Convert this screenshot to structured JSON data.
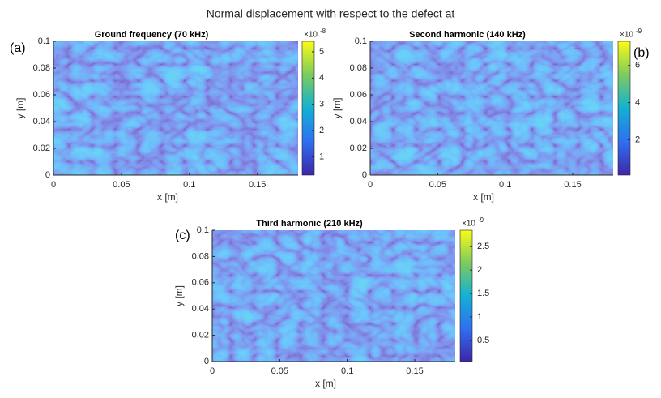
{
  "figure_title": "Normal displacement with respect to the defect at",
  "chart_data": [
    {
      "type": "heatmap",
      "panel_label": "(a)",
      "title": "Ground frequency (70 kHz)",
      "x_label": "x [m]",
      "y_label": "y [m]",
      "xlim": [
        0,
        0.18
      ],
      "ylim": [
        0,
        0.1
      ],
      "xticks": [
        0,
        0.05,
        0.1,
        0.15
      ],
      "yticks": [
        0,
        0.02,
        0.04,
        0.06,
        0.08,
        0.1
      ],
      "colorbar": {
        "clim": [
          0.3,
          5.4
        ],
        "ticks": [
          1,
          2,
          3,
          4,
          5
        ],
        "multiplier": "×10",
        "exponent": "-8"
      }
    },
    {
      "type": "heatmap",
      "panel_label": "(b)",
      "title": "Second harmonic (140 kHz)",
      "x_label": "x [m]",
      "y_label": "y [m]",
      "xlim": [
        0,
        0.18
      ],
      "ylim": [
        0,
        0.1
      ],
      "xticks": [
        0,
        0.05,
        0.1,
        0.15
      ],
      "yticks": [
        0,
        0.02,
        0.04,
        0.06,
        0.08,
        0.1
      ],
      "colorbar": {
        "clim": [
          0.1,
          7.3
        ],
        "ticks": [
          2,
          4,
          6
        ],
        "multiplier": "×10",
        "exponent": "-9"
      }
    },
    {
      "type": "heatmap",
      "panel_label": "(c)",
      "title": "Third harmonic (210 kHz)",
      "x_label": "x [m]",
      "y_label": "y [m]",
      "xlim": [
        0,
        0.18
      ],
      "ylim": [
        0,
        0.1
      ],
      "xticks": [
        0,
        0.05,
        0.1,
        0.15
      ],
      "yticks": [
        0,
        0.02,
        0.04,
        0.06,
        0.08,
        0.1
      ],
      "colorbar": {
        "clim": [
          0.05,
          2.85
        ],
        "ticks": [
          0.5,
          1,
          1.5,
          2,
          2.5
        ],
        "multiplier": "×10",
        "exponent": "-9"
      }
    }
  ]
}
